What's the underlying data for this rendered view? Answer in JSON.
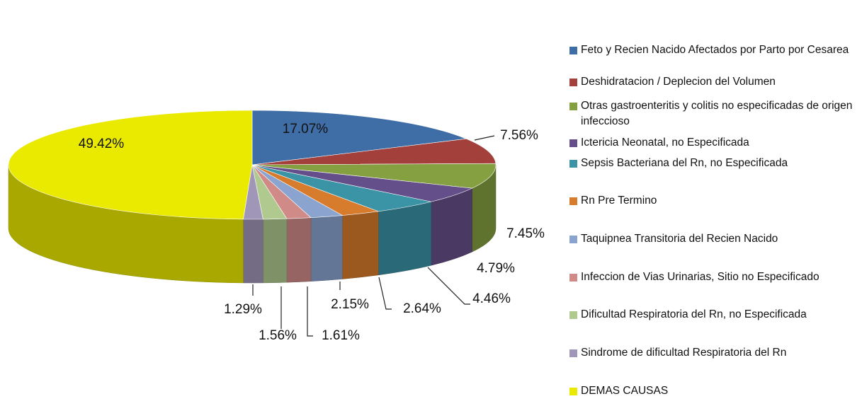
{
  "chart_data": {
    "type": "pie",
    "categories": [
      "Feto y Recien Nacido Afectados por Parto por Cesarea",
      "Deshidratacion / Deplecion del Volumen",
      "Otras gastroenteritis y colitis no especificadas de origen infeccioso",
      "Ictericia Neonatal, no Especificada",
      "Sepsis Bacteriana del Rn, no Especificada",
      "Rn Pre Termino",
      "Taquipnea Transitoria del Recien Nacido",
      "Infeccion de Vias Urinarias, Sitio no Especificado",
      "Dificultad Respiratoria del Rn, no Especificada",
      "Sindrome de dificultad Respiratoria del Rn",
      "DEMAS CAUSAS"
    ],
    "values": [
      17.07,
      7.56,
      7.45,
      4.79,
      4.46,
      2.64,
      2.15,
      1.61,
      1.56,
      1.29,
      49.42
    ],
    "value_labels": [
      "17.07%",
      "7.56%",
      "7.45%",
      "4.79%",
      "4.46%",
      "2.64%",
      "2.15%",
      "1.61%",
      "1.56%",
      "1.29%",
      "49.42%"
    ],
    "colors": [
      "#3f6ea6",
      "#a4403c",
      "#84a040",
      "#654f8a",
      "#3b93a6",
      "#d77b2d",
      "#8aa4cf",
      "#d08b89",
      "#b0c98e",
      "#a096b8",
      "#eaea00"
    ],
    "legend": "right"
  }
}
